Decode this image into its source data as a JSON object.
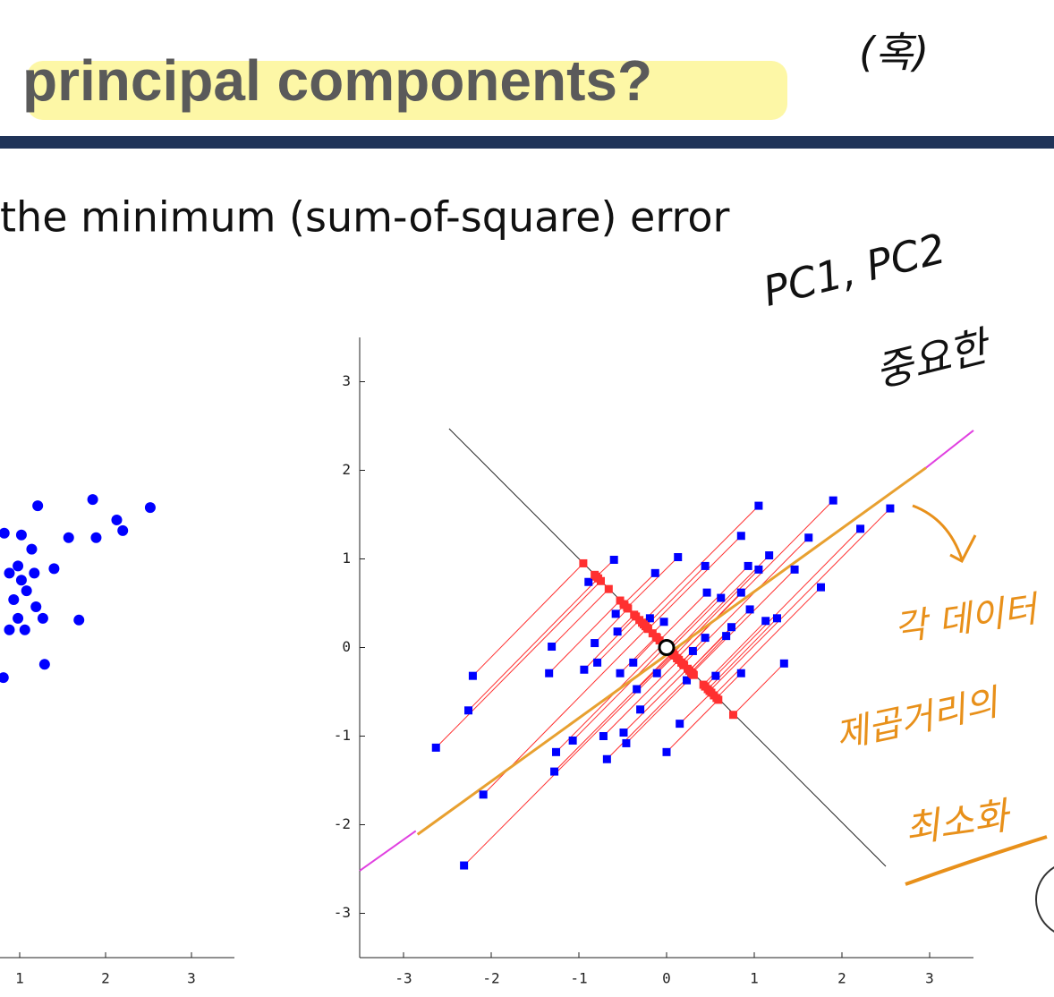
{
  "slide": {
    "title": "principal components?",
    "body": "the minimum (sum-of-square) error",
    "annotations": [
      "(혹)",
      "PC1, PC2",
      "중요한",
      "각 데이터",
      "제곱거리의",
      "최소화"
    ]
  },
  "chart_data": [
    {
      "type": "scatter",
      "xlim": [
        -3.5,
        3.5
      ],
      "ylim": [
        -3.5,
        3.5
      ],
      "xticks": [
        1,
        2,
        3
      ],
      "series": [
        {
          "color": "#0000ff",
          "marker": "circle",
          "x": [
            1.02,
            0.98,
            1.21,
            1.14,
            1.17,
            1.02,
            1.08,
            0.93,
            1.19,
            1.27,
            0.98,
            1.06,
            0.88,
            0.81,
            1.29,
            1.4,
            1.57,
            1.69,
            1.85,
            1.89,
            2.13,
            2.2,
            2.52,
            0.82,
            0.88
          ],
          "y": [
            1.27,
            0.92,
            1.6,
            1.11,
            0.84,
            0.76,
            0.64,
            0.54,
            0.46,
            0.33,
            0.33,
            0.2,
            0.2,
            -0.34,
            -0.19,
            0.89,
            1.24,
            0.31,
            1.67,
            1.24,
            1.44,
            1.32,
            1.58,
            1.29,
            0.84
          ]
        }
      ]
    },
    {
      "type": "scatter",
      "xlim": [
        -3.5,
        3.5
      ],
      "ylim": [
        -3.5,
        3.5
      ],
      "xticks": [
        -3,
        -2,
        -1,
        0,
        1,
        2,
        3
      ],
      "yticks": [
        -3,
        -2,
        -1,
        0,
        1,
        2,
        3
      ],
      "projection_lines": true,
      "projection_color": "#ff3030",
      "series": [
        {
          "color": "#0000ff",
          "marker": "square",
          "x": [
            -2.63,
            -2.21,
            -2.26,
            -2.31,
            -2.09,
            -1.34,
            -1.31,
            -1.26,
            -1.28,
            -1.07,
            -0.89,
            -0.82,
            -0.94,
            -0.79,
            -0.72,
            -0.68,
            -0.6,
            -0.58,
            -0.56,
            -0.53,
            -0.49,
            -0.46,
            -0.38,
            -0.34,
            -0.3,
            -0.19,
            -0.13,
            -0.11,
            -0.03,
            0,
            0.13,
            0.15,
            0.23,
            0.3,
            0.44,
            0.44,
            0.46,
            0.56,
            0.62,
            0.68,
            0.74,
            0.85,
            0.85,
            0.93,
            1.05,
            0.95,
            1.05,
            0.85,
            1.13,
            1.17,
            1.26,
            1.34,
            1.46,
            1.62,
            1.76,
            1.9,
            2.21,
            2.55
          ],
          "y": [
            -1.13,
            -0.32,
            -0.71,
            -2.46,
            -1.66,
            -0.29,
            0.01,
            -1.18,
            -1.4,
            -1.05,
            0.74,
            0.05,
            -0.25,
            -0.17,
            -1.0,
            -1.26,
            0.99,
            0.38,
            0.18,
            -0.29,
            -0.96,
            -1.08,
            -0.17,
            -0.47,
            -0.7,
            0.33,
            0.84,
            -0.29,
            0.29,
            -1.18,
            1.02,
            -0.86,
            -0.37,
            -0.04,
            0.11,
            0.92,
            0.62,
            -0.32,
            0.56,
            0.13,
            0.23,
            0.62,
            -0.29,
            0.92,
            0.88,
            0.43,
            1.6,
            1.26,
            0.3,
            1.04,
            0.33,
            -0.18,
            0.88,
            1.24,
            0.68,
            1.66,
            1.34,
            1.57
          ]
        },
        {
          "color": "#ff3030",
          "marker": "square",
          "x": [
            -0.75,
            -0.95,
            -0.78,
            0.08,
            -0.22,
            -0.53,
            -0.66,
            -0.04,
            0.06,
            -0.01,
            -0.82,
            -0.44,
            -0.35,
            -0.31,
            0.14,
            0.29,
            -0.8,
            -0.48,
            -0.37,
            -0.12,
            0.24,
            0.31,
            -0.11,
            0.07,
            0.2,
            -0.26,
            -0.49,
            0.09,
            -0.16,
            0.59,
            -0.45,
            0.51,
            0.3,
            0.17,
            0.17,
            -0.24,
            -0.08,
            0.44,
            0.03,
            0.28,
            0.26,
            0.12,
            0.57,
            0.01,
            0.09,
            0.26,
            -0.28,
            -0.21,
            0.42,
            0.07,
            0.47,
            0.76,
            0.29,
            0.19,
            0.54,
            0.12,
            0.44,
            0.49
          ],
          "y": [
            0.75,
            0.95,
            0.78,
            -0.08,
            0.22,
            0.53,
            0.66,
            0.04,
            -0.06,
            0.01,
            0.82,
            0.44,
            0.35,
            0.31,
            -0.14,
            -0.29,
            0.8,
            0.48,
            0.37,
            0.12,
            -0.24,
            -0.31,
            0.11,
            -0.07,
            -0.2,
            0.26,
            0.49,
            -0.09,
            0.16,
            -0.59,
            0.45,
            -0.51,
            -0.3,
            -0.17,
            -0.17,
            0.24,
            0.08,
            -0.44,
            -0.03,
            -0.28,
            -0.26,
            -0.12,
            -0.57,
            -0.01,
            -0.09,
            -0.26,
            0.28,
            0.21,
            -0.42,
            -0.07,
            -0.47,
            -0.76,
            -0.29,
            -0.19,
            -0.54,
            -0.12,
            -0.44,
            -0.49
          ]
        },
        {
          "color": "#222222",
          "marker": "none",
          "line": true,
          "line_width": 1,
          "x": [
            -2.48,
            2.5
          ],
          "y": [
            2.47,
            -2.47
          ]
        },
        {
          "color": "#e8a030",
          "marker": "none",
          "line": true,
          "line_width": 3,
          "x": [
            -2.84,
            2.96
          ],
          "y": [
            -2.11,
            2.03
          ]
        },
        {
          "color": "#e040e0",
          "marker": "none",
          "line": true,
          "line_width": 2,
          "x": [
            -3.5,
            -2.86,
            null,
            2.96,
            3.5
          ],
          "y": [
            -2.52,
            -2.07,
            null,
            2.03,
            2.45
          ]
        },
        {
          "color": "#000000",
          "marker": "ring",
          "x": [
            0
          ],
          "y": [
            0
          ]
        }
      ]
    }
  ]
}
